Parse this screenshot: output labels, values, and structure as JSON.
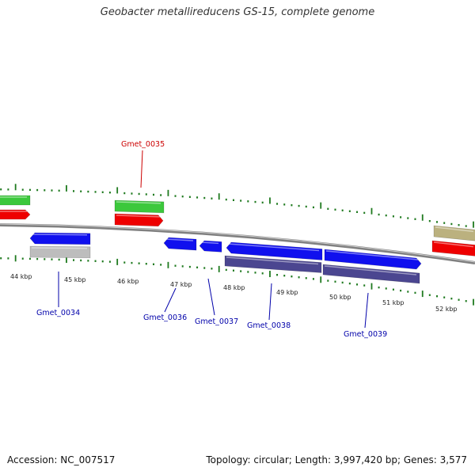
{
  "title": "Geobacter metallireducens GS-15, complete genome",
  "footer": {
    "accession": "Accession: NC_007517",
    "summary": "Topology: circular; Length: 3,997,420 bp; Genes: 3,577"
  },
  "colors": {
    "backbone": "#808080",
    "tick": "#1f7a1f",
    "label_forward": "#cc0000",
    "label_reverse": "#0000aa",
    "cds_green": "#3cc83c",
    "cds_red": "#ee0000",
    "cds_blue": "#1010ee",
    "cds_navy": "#4b4690",
    "cds_gray": "#bdbdbd",
    "cds_khaki": "#bbb17f"
  },
  "ruler": {
    "labels": [
      "44 kbp",
      "45 kbp",
      "46 kbp",
      "47 kbp",
      "48 kbp",
      "49 kbp",
      "50 kbp",
      "51 kbp",
      "52 kbp"
    ]
  },
  "gene_labels": [
    {
      "name": "Gmet_0035",
      "strand": "forward"
    },
    {
      "name": "Gmet_0034",
      "strand": "reverse"
    },
    {
      "name": "Gmet_0036",
      "strand": "reverse"
    },
    {
      "name": "Gmet_0037",
      "strand": "reverse"
    },
    {
      "name": "Gmet_0038",
      "strand": "reverse"
    },
    {
      "name": "Gmet_0039",
      "strand": "reverse"
    }
  ]
}
